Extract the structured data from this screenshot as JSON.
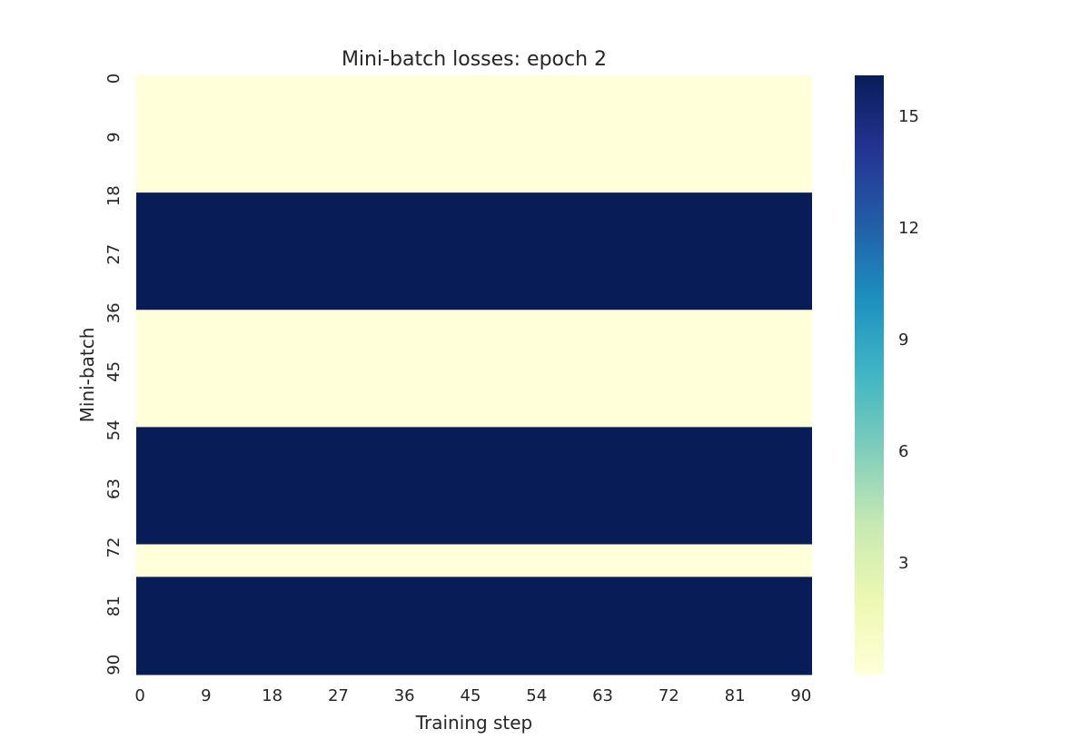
{
  "chart_data": {
    "type": "heatmap",
    "title": "Mini-batch losses: epoch 2",
    "xlabel": "Training step",
    "ylabel": "Mini-batch",
    "x_tick_labels": [
      "0",
      "9",
      "18",
      "27",
      "36",
      "45",
      "54",
      "63",
      "72",
      "81",
      "90"
    ],
    "y_tick_labels": [
      "0",
      "9",
      "18",
      "27",
      "36",
      "45",
      "54",
      "63",
      "72",
      "81",
      "90"
    ],
    "rows": 92,
    "cols": 92,
    "colormap": "YlGnBu",
    "vmin": 0,
    "vmax": 16.1,
    "colorbar_ticks": [
      "3",
      "6",
      "9",
      "12",
      "15"
    ],
    "row_bands": [
      {
        "rows": [
          0,
          18
        ],
        "value": 0.0
      },
      {
        "rows": [
          18,
          36
        ],
        "value": 16.1
      },
      {
        "rows": [
          36,
          54
        ],
        "value": 0.0
      },
      {
        "rows": [
          54,
          72
        ],
        "value": 16.1
      },
      {
        "rows": [
          72,
          77
        ],
        "value": 0.0
      },
      {
        "rows": [
          77,
          92
        ],
        "value": 16.1
      }
    ],
    "grid": false,
    "legend": "colorbar-right",
    "colors": {
      "low": "#ffffd9",
      "high": "#081d58",
      "text": "#262626"
    }
  }
}
